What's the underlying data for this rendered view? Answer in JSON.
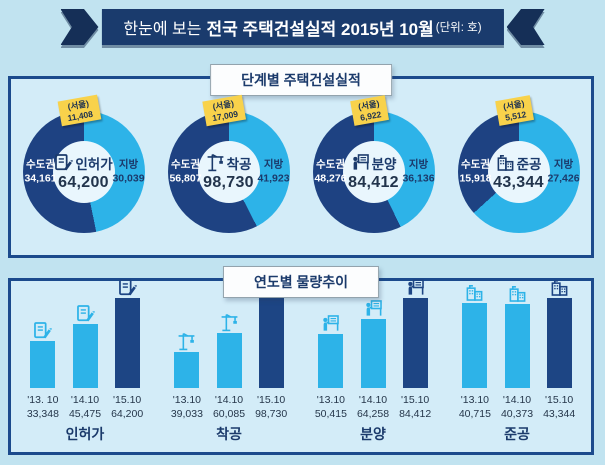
{
  "colors": {
    "page_bg": "#c1e3f0",
    "panel_bg": "#d3ecf8",
    "panel_border": "#1b4a8c",
    "banner_bg": "#1a3b6d",
    "banner_end_bg": "#152f57",
    "metro": "#1e4282",
    "local": "#2db3e8",
    "donut_hole": "#e9f6fd",
    "seoul_tag_bg": "#f8d24b",
    "text_navy": "#1b3a6b",
    "bar_years": [
      "#2db3e8",
      "#2db3e8",
      "#1d4584"
    ]
  },
  "icons": {
    "permit": "document-pencil-icon",
    "start": "tower-crane-icon",
    "sale": "presenter-board-icon",
    "complete": "buildings-icon"
  },
  "banner": {
    "prefix": "한눈에 보는",
    "title": "전국 주택건설실적 2015년 10월",
    "unit": "(단위: 호)"
  },
  "section1": {
    "title": "단계별 주택건설실적",
    "metro_name": "수도권",
    "local_name": "지방",
    "seoul_name": "(서울)",
    "donuts": [
      {
        "label": "인허가",
        "total": "64,200",
        "metro": "34,161",
        "local": "30,039",
        "seoul": "11,408"
      },
      {
        "label": "착공",
        "total": "98,730",
        "metro": "56,807",
        "local": "41,923",
        "seoul": "17,009"
      },
      {
        "label": "분양",
        "total": "84,412",
        "metro": "48,276",
        "local": "36,136",
        "seoul": "6,922"
      },
      {
        "label": "준공",
        "total": "43,344",
        "metro": "15,918",
        "local": "27,426",
        "seoul": "5,512"
      }
    ]
  },
  "section2": {
    "title": "연도별 물량추이",
    "groups": [
      {
        "label": "인허가",
        "bars": [
          {
            "year": "'13. 10",
            "value": "33,348"
          },
          {
            "year": "'14.10",
            "value": "45,475"
          },
          {
            "year": "'15.10",
            "value": "64,200"
          }
        ]
      },
      {
        "label": "착공",
        "bars": [
          {
            "year": "'13.10",
            "value": "39,033"
          },
          {
            "year": "'14.10",
            "value": "60,085"
          },
          {
            "year": "'15.10",
            "value": "98,730"
          }
        ]
      },
      {
        "label": "분양",
        "bars": [
          {
            "year": "'13.10",
            "value": "50,415"
          },
          {
            "year": "'14.10",
            "value": "64,258"
          },
          {
            "year": "'15.10",
            "value": "84,412"
          }
        ]
      },
      {
        "label": "준공",
        "bars": [
          {
            "year": "'13.10",
            "value": "40,715"
          },
          {
            "year": "'14.10",
            "value": "40,373"
          },
          {
            "year": "'15.10",
            "value": "43,344"
          }
        ]
      }
    ]
  },
  "chart_data": [
    {
      "type": "pie",
      "title": "단계별 주택건설실적",
      "unit": "호",
      "charts": [
        {
          "label": "인허가",
          "total": 64200,
          "slices": [
            {
              "name": "수도권",
              "value": 34161
            },
            {
              "name": "지방",
              "value": 30039
            }
          ],
          "callout": {
            "name": "(서울)",
            "value": 11408
          }
        },
        {
          "label": "착공",
          "total": 98730,
          "slices": [
            {
              "name": "수도권",
              "value": 56807
            },
            {
              "name": "지방",
              "value": 41923
            }
          ],
          "callout": {
            "name": "(서울)",
            "value": 17009
          }
        },
        {
          "label": "분양",
          "total": 84412,
          "slices": [
            {
              "name": "수도권",
              "value": 48276
            },
            {
              "name": "지방",
              "value": 36136
            }
          ],
          "callout": {
            "name": "(서울)",
            "value": 6922
          }
        },
        {
          "label": "준공",
          "total": 43344,
          "slices": [
            {
              "name": "수도권",
              "value": 15918
            },
            {
              "name": "지방",
              "value": 27426
            }
          ],
          "callout": {
            "name": "(서울)",
            "value": 5512
          }
        }
      ]
    },
    {
      "type": "bar",
      "title": "연도별 물량추이",
      "categories": [
        "'13.10",
        "'14.10",
        "'15.10"
      ],
      "series": [
        {
          "name": "인허가",
          "values": [
            33348,
            45475,
            64200
          ]
        },
        {
          "name": "착공",
          "values": [
            39033,
            60085,
            98730
          ]
        },
        {
          "name": "분양",
          "values": [
            50415,
            64258,
            84412
          ]
        },
        {
          "name": "준공",
          "values": [
            40715,
            40373,
            43344
          ]
        }
      ],
      "legend": "none",
      "grid": false,
      "scale_note": "each group scaled to its own maximum"
    }
  ]
}
